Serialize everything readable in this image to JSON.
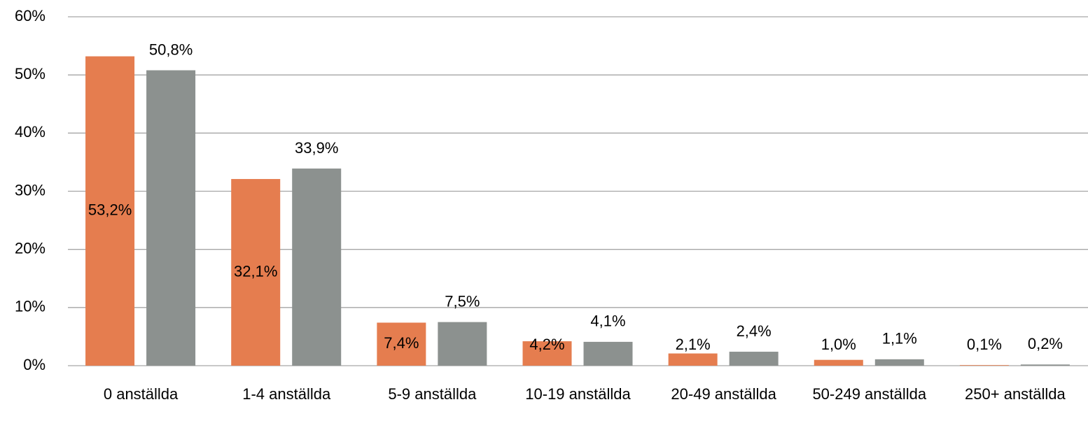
{
  "chart_data": {
    "type": "bar",
    "categories": [
      "0 anställda",
      "1-4 anställda",
      "5-9 anställda",
      "10-19 anställda",
      "20-49 anställda",
      "50-249 anställda",
      "250+ anställda"
    ],
    "series": [
      {
        "color": "#e57d4f",
        "values": [
          53.2,
          32.1,
          7.4,
          4.2,
          2.1,
          1.0,
          0.1
        ],
        "value_labels": [
          "53,2%",
          "32,1%",
          "7,4%",
          "4,2%",
          "2,1%",
          "1,0%",
          "0,1%"
        ]
      },
      {
        "color": "#8c918f",
        "values": [
          50.8,
          33.9,
          7.5,
          4.1,
          2.4,
          1.1,
          0.2
        ],
        "value_labels": [
          "50,8%",
          "33,9%",
          "7,5%",
          "4,1%",
          "2,4%",
          "1,1%",
          "0,2%"
        ]
      }
    ],
    "ylim": [
      0,
      60
    ],
    "yticks": [
      {
        "value": 0,
        "label": "0%"
      },
      {
        "value": 10,
        "label": "10%"
      },
      {
        "value": 20,
        "label": "20%"
      },
      {
        "value": 30,
        "label": "30%"
      },
      {
        "value": 40,
        "label": "40%"
      },
      {
        "value": 50,
        "label": "50%"
      },
      {
        "value": 60,
        "label": "60%"
      }
    ],
    "grid": true
  }
}
